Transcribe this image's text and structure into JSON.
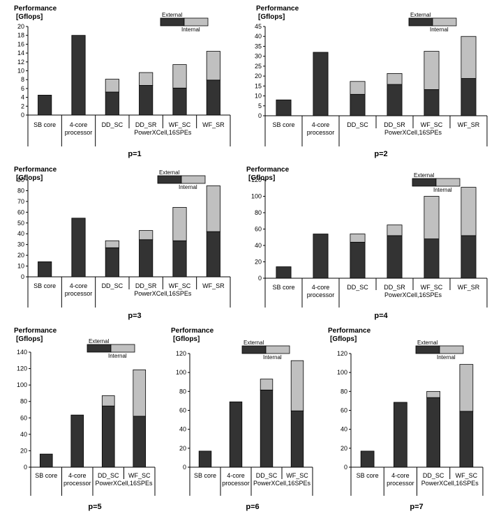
{
  "colors": {
    "internal": "#333333",
    "external": "#c0c0c0",
    "outline": "#000000"
  },
  "chart_data": [
    {
      "type": "bar",
      "stacked": true,
      "ylabel_line1": "Performance",
      "ylabel_line2": "[Gflops]",
      "title": "p=1",
      "ylim": [
        0,
        20
      ],
      "yticks": [
        0,
        2,
        4,
        6,
        8,
        10,
        12,
        14,
        16,
        18,
        20
      ],
      "categories": [
        "SB core",
        "4-core processor",
        "DD_SC",
        "DD_SR",
        "WF_SC",
        "WF_SR"
      ],
      "group_label": "PowerXCell,16SPEs",
      "series": [
        {
          "name": "Internal",
          "values": [
            4.5,
            18.0,
            5.2,
            6.7,
            6.1,
            7.9
          ]
        },
        {
          "name": "External",
          "values": [
            0,
            0,
            2.9,
            2.9,
            5.3,
            6.5
          ]
        }
      ],
      "legend": [
        "External",
        "Internal"
      ]
    },
    {
      "type": "bar",
      "stacked": true,
      "ylabel_line1": "Performance",
      "ylabel_line2": "[Gflops]",
      "title": "p=2",
      "ylim": [
        0,
        45
      ],
      "yticks": [
        0,
        5,
        10,
        15,
        20,
        25,
        30,
        35,
        40,
        45
      ],
      "categories": [
        "SB core",
        "4-core processor",
        "DD_SC",
        "DD_SR",
        "WF_SC",
        "WF_SR"
      ],
      "group_label": "PowerXCell,16SPEs",
      "series": [
        {
          "name": "Internal",
          "values": [
            8.0,
            32.0,
            10.8,
            15.8,
            13.2,
            18.8
          ]
        },
        {
          "name": "External",
          "values": [
            0,
            0,
            6.5,
            5.5,
            19.3,
            21.2
          ]
        }
      ],
      "legend": [
        "External",
        "Internal"
      ]
    },
    {
      "type": "bar",
      "stacked": true,
      "ylabel_line1": "Performance",
      "ylabel_line2": "[Gflops]",
      "title": "p=3",
      "ylim": [
        0,
        90
      ],
      "yticks": [
        0,
        10,
        20,
        30,
        40,
        50,
        60,
        70,
        80,
        90
      ],
      "categories": [
        "SB core",
        "4-core processor",
        "DD_SC",
        "DD_SR",
        "WF_SC",
        "WF_SR"
      ],
      "group_label": "PowerXCell,16SPEs",
      "series": [
        {
          "name": "Internal",
          "values": [
            14,
            54.5,
            27,
            34.5,
            33.5,
            42
          ]
        },
        {
          "name": "External",
          "values": [
            0,
            0,
            6.5,
            8.5,
            31,
            42.5
          ]
        }
      ],
      "legend": [
        "External",
        "Internal"
      ]
    },
    {
      "type": "bar",
      "stacked": true,
      "ylabel_line1": "Performance",
      "ylabel_line2": "[Gflops]",
      "title": "p=4",
      "ylim": [
        0,
        120
      ],
      "yticks": [
        0,
        20,
        40,
        60,
        80,
        100,
        120
      ],
      "categories": [
        "SB core",
        "4-core processor",
        "DD_SC",
        "DD_SR",
        "WF_SC",
        "WF_SR"
      ],
      "group_label": "PowerXCell,16SPEs",
      "series": [
        {
          "name": "Internal",
          "values": [
            14,
            54,
            44,
            52,
            48,
            52
          ]
        },
        {
          "name": "External",
          "values": [
            0,
            0,
            10,
            13,
            52,
            59
          ]
        }
      ],
      "legend": [
        "External",
        "Internal"
      ]
    },
    {
      "type": "bar",
      "stacked": true,
      "ylabel_line1": "Performance",
      "ylabel_line2": "[Gflops]",
      "title": "p=5",
      "ylim": [
        0,
        140
      ],
      "yticks": [
        0,
        20,
        40,
        60,
        80,
        100,
        120,
        140
      ],
      "categories": [
        "SB core",
        "4-core processor",
        "DD_SC",
        "WF_SC"
      ],
      "group_label": "PowerXCell,16SPEs",
      "series": [
        {
          "name": "Internal",
          "values": [
            16,
            63.5,
            74.5,
            62
          ]
        },
        {
          "name": "External",
          "values": [
            0,
            0,
            12.5,
            56.5
          ]
        }
      ],
      "legend": [
        "External",
        "Internal"
      ]
    },
    {
      "type": "bar",
      "stacked": true,
      "ylabel_line1": "Performance",
      "ylabel_line2": "[Gflops]",
      "title": "p=6",
      "ylim": [
        0,
        120
      ],
      "yticks": [
        0,
        20,
        40,
        60,
        80,
        100,
        120
      ],
      "categories": [
        "SB core",
        "4-core processor",
        "DD_SC",
        "WF_SC"
      ],
      "group_label": "PowerXCell,16SPEs",
      "series": [
        {
          "name": "Internal",
          "values": [
            17,
            69,
            81.5,
            59.5
          ]
        },
        {
          "name": "External",
          "values": [
            0,
            0,
            11.5,
            53
          ]
        }
      ],
      "legend": [
        "External",
        "Internal"
      ]
    },
    {
      "type": "bar",
      "stacked": true,
      "ylabel_line1": "Performance",
      "ylabel_line2": "[Gflops]",
      "title": "p=7",
      "ylim": [
        0,
        120
      ],
      "yticks": [
        0,
        20,
        40,
        60,
        80,
        100,
        120
      ],
      "categories": [
        "SB core",
        "4-core processor",
        "DD_SC",
        "WF_SC"
      ],
      "group_label": "PowerXCell,16SPEs",
      "series": [
        {
          "name": "Internal",
          "values": [
            17,
            68.5,
            73.5,
            59
          ]
        },
        {
          "name": "External",
          "values": [
            0,
            0,
            6.5,
            49.5
          ]
        }
      ],
      "legend": [
        "External",
        "Internal"
      ]
    }
  ]
}
